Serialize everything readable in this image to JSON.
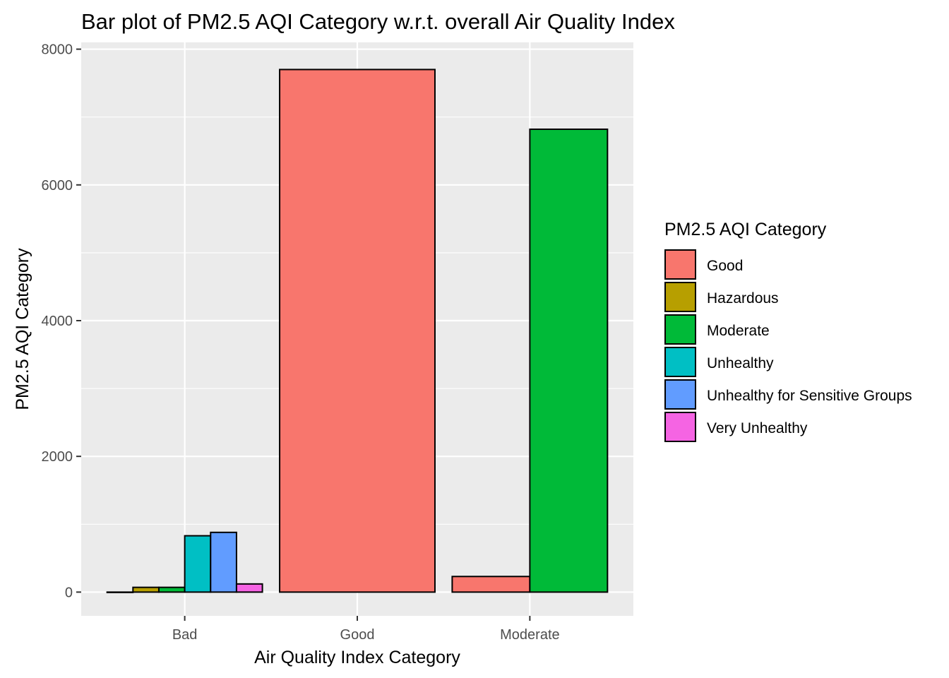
{
  "chart_data": {
    "type": "bar",
    "layout": "grouped",
    "title": "Bar plot of PM2.5 AQI Category w.r.t. overall Air Quality Index",
    "xlabel": "Air Quality Index Category",
    "ylabel": "PM2.5 AQI Category",
    "ylim": [
      -350,
      8100
    ],
    "yticks": [
      0,
      2000,
      4000,
      6000,
      8000
    ],
    "grid": true,
    "legend_title": "PM2.5 AQI Category",
    "legend_position": "right",
    "categories": [
      "Bad",
      "Good",
      "Moderate"
    ],
    "series": [
      {
        "name": "Good",
        "color": "#F8766D",
        "values": [
          0,
          7700,
          230
        ]
      },
      {
        "name": "Hazardous",
        "color": "#B79F00",
        "values": [
          70,
          0,
          0
        ]
      },
      {
        "name": "Moderate",
        "color": "#00BA38",
        "values": [
          70,
          0,
          6820
        ]
      },
      {
        "name": "Unhealthy",
        "color": "#00BFC4",
        "values": [
          830,
          0,
          0
        ]
      },
      {
        "name": "Unhealthy for Sensitive Groups",
        "color": "#619CFF",
        "values": [
          880,
          0,
          0
        ]
      },
      {
        "name": "Very Unhealthy",
        "color": "#F564E3",
        "values": [
          120,
          0,
          0
        ]
      }
    ],
    "present": [
      [
        "Good",
        "Hazardous",
        "Moderate",
        "Unhealthy",
        "Unhealthy for Sensitive Groups",
        "Very Unhealthy"
      ],
      [
        "Good"
      ],
      [
        "Good",
        "Moderate"
      ]
    ]
  }
}
